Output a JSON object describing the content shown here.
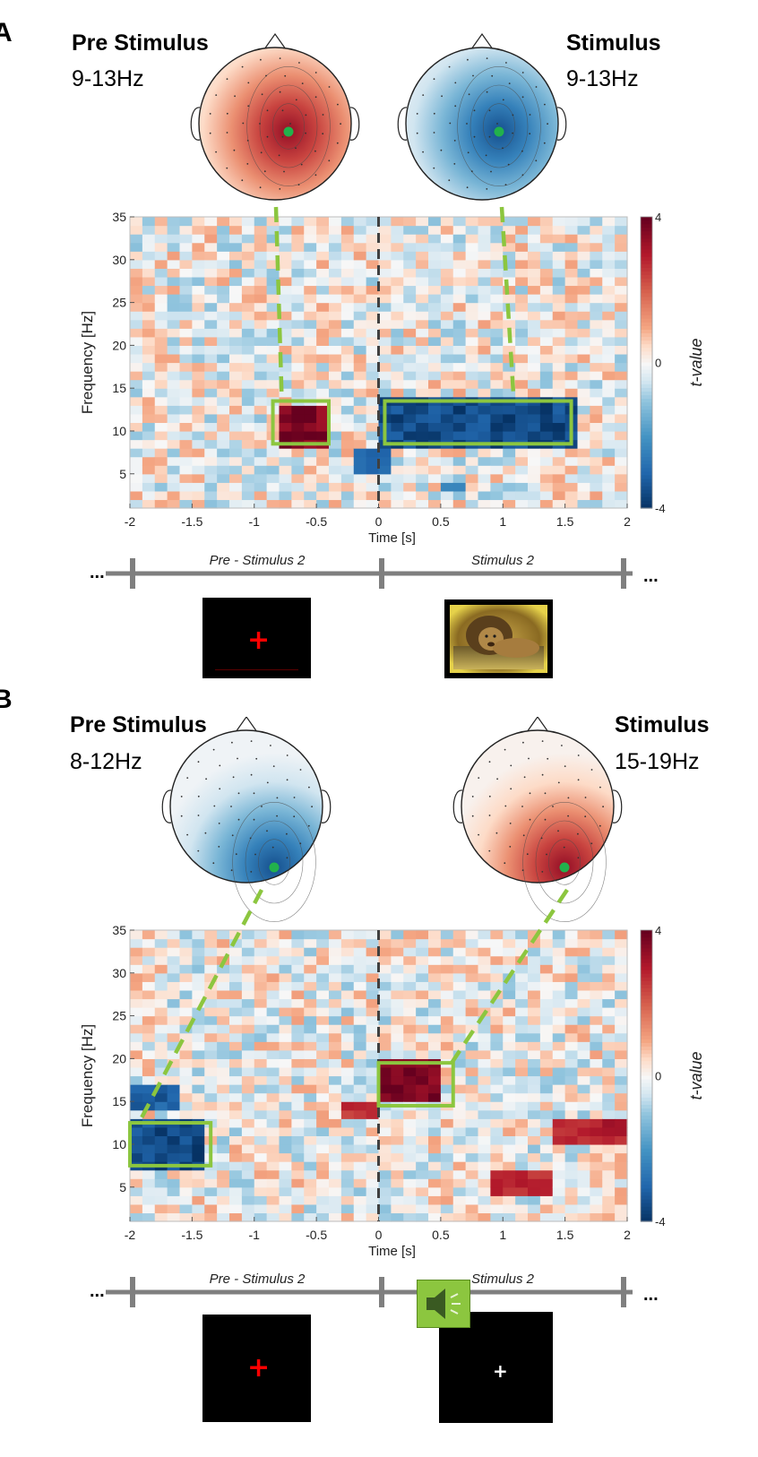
{
  "panels": [
    {
      "letter": "A",
      "pre_title": "Pre Stimulus",
      "pre_band": "9-13Hz",
      "stim_title": "Stimulus",
      "stim_band": "9-13Hz",
      "topo_pre_polarity": "positive",
      "topo_stim_polarity": "negative",
      "timeline_pre_label": "Pre - Stimulus 2",
      "timeline_stim_label": "Stimulus 2",
      "ellipsis_left": "...",
      "ellipsis_right": "...",
      "stim_image": "photo of a lion",
      "stim_icon": ""
    },
    {
      "letter": "B",
      "pre_title": "Pre Stimulus",
      "pre_band": "8-12Hz",
      "stim_title": "Stimulus",
      "stim_band": "15-19Hz",
      "topo_pre_polarity": "negative",
      "topo_stim_polarity": "positive",
      "timeline_pre_label": "Pre - Stimulus 2",
      "timeline_stim_label": "Stimulus 2",
      "ellipsis_left": "...",
      "ellipsis_right": "...",
      "stim_image": "",
      "stim_icon": "speaker-icon",
      "fixation_cross_stim": "+"
    }
  ],
  "fixation_cross": "+",
  "colors": {
    "positive_max": "#67001f",
    "negative_max": "#053061",
    "highlight_box": "#8cc63f",
    "electrode_dot": "#22b14c",
    "timeline": "#7f7f7f",
    "fixation_cross": "#ff0000"
  },
  "chart_data": [
    {
      "type": "heatmap",
      "title": "",
      "xlabel": "Time [s]",
      "ylabel": "Frequency [Hz]",
      "xlim": [
        -2,
        2
      ],
      "ylim": [
        1,
        35
      ],
      "xticks": [
        "-2",
        "-1.5",
        "-1",
        "-0.5",
        "0",
        "0.5",
        "1",
        "1.5",
        "2"
      ],
      "yticks": [
        "5",
        "10",
        "15",
        "20",
        "25",
        "30",
        "35"
      ],
      "colorbar": {
        "label": "t-value",
        "min": -4,
        "max": 4,
        "ticks": [
          "-4",
          "0",
          "4"
        ]
      },
      "clusters": [
        {
          "sign": "positive",
          "t": 3.8,
          "time": [
            -0.8,
            -0.4
          ],
          "freq": [
            8,
            13
          ]
        },
        {
          "sign": "negative",
          "t": -3.6,
          "time": [
            0.05,
            1.6
          ],
          "freq": [
            8,
            14
          ]
        },
        {
          "sign": "negative",
          "t": -2.8,
          "time": [
            -0.2,
            0.1
          ],
          "freq": [
            5,
            8
          ]
        },
        {
          "sign": "negative",
          "t": -2.5,
          "time": [
            0.5,
            0.7
          ],
          "freq": [
            3,
            4
          ]
        }
      ],
      "highlight_boxes": [
        {
          "label": "Pre Stimulus 9-13Hz",
          "time": [
            -0.85,
            -0.4
          ],
          "freq": [
            8.5,
            13.5
          ]
        },
        {
          "label": "Stimulus 9-13Hz",
          "time": [
            0.05,
            1.55
          ],
          "freq": [
            8.5,
            13.5
          ]
        }
      ]
    },
    {
      "type": "heatmap",
      "title": "",
      "xlabel": "Time [s]",
      "ylabel": "Frequency [Hz]",
      "xlim": [
        -2,
        2
      ],
      "ylim": [
        1,
        35
      ],
      "xticks": [
        "-2",
        "-1.5",
        "-1",
        "-0.5",
        "0",
        "0.5",
        "1",
        "1.5",
        "2"
      ],
      "yticks": [
        "5",
        "10",
        "15",
        "20",
        "25",
        "30",
        "35"
      ],
      "colorbar": {
        "label": "t-value",
        "min": -4,
        "max": 4,
        "ticks": [
          "-4",
          "0",
          "4"
        ]
      },
      "clusters": [
        {
          "sign": "negative",
          "t": -3.6,
          "time": [
            -2,
            -1.4
          ],
          "freq": [
            7,
            13
          ]
        },
        {
          "sign": "negative",
          "t": -3.2,
          "time": [
            -2,
            -1.6
          ],
          "freq": [
            14,
            17
          ]
        },
        {
          "sign": "positive",
          "t": 3.8,
          "time": [
            0.05,
            0.55
          ],
          "freq": [
            15,
            20
          ]
        },
        {
          "sign": "positive",
          "t": 3.0,
          "time": [
            1.4,
            2.0
          ],
          "freq": [
            10,
            13
          ]
        },
        {
          "sign": "positive",
          "t": 2.8,
          "time": [
            0.9,
            1.4
          ],
          "freq": [
            4,
            7
          ]
        },
        {
          "sign": "positive",
          "t": 2.7,
          "time": [
            -0.25,
            0.05
          ],
          "freq": [
            13,
            15
          ]
        }
      ],
      "highlight_boxes": [
        {
          "label": "Pre Stimulus 8-12Hz",
          "time": [
            -2,
            -1.35
          ],
          "freq": [
            7.5,
            12.5
          ]
        },
        {
          "label": "Stimulus 15-19Hz",
          "time": [
            0.0,
            0.6
          ],
          "freq": [
            14.5,
            19.5
          ]
        }
      ]
    }
  ]
}
